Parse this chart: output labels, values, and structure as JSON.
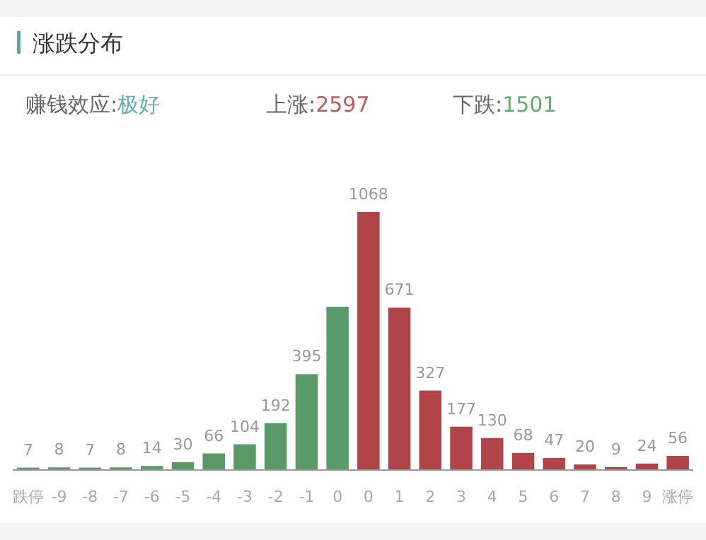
{
  "chart_data": {
    "type": "bar",
    "title": "涨跌分布",
    "annotations": [
      "赚钱效应:极好",
      "上涨:2597",
      "下跌:1501"
    ],
    "categories": [
      "跌停",
      "-9",
      "-8",
      "-7",
      "-6",
      "-5",
      "-4",
      "-3",
      "-2",
      "-1",
      "0",
      "0",
      "1",
      "2",
      "3",
      "4",
      "5",
      "6",
      "7",
      "8",
      "9",
      "涨停"
    ],
    "values": [
      7,
      8,
      7,
      8,
      14,
      30,
      66,
      104,
      192,
      395,
      675,
      1068,
      671,
      327,
      177,
      130,
      68,
      47,
      20,
      9,
      24,
      56
    ],
    "value_labels": [
      "7",
      "8",
      "7",
      "8",
      "14",
      "30",
      "66",
      "104",
      "192",
      "395",
      null,
      "1068",
      "671",
      "327",
      "177",
      "130",
      "68",
      "47",
      "20",
      "9",
      "24",
      "56"
    ],
    "colors": [
      "#5a9a68",
      "#5a9a68",
      "#5a9a68",
      "#5a9a68",
      "#5a9a68",
      "#5a9a68",
      "#5a9a68",
      "#5a9a68",
      "#5a9a68",
      "#5a9a68",
      "#5a9a68",
      "#b04448",
      "#b04448",
      "#b04448",
      "#b04448",
      "#b04448",
      "#b04448",
      "#b04448",
      "#b04448",
      "#b04448",
      "#b04448",
      "#b04448"
    ]
  }
}
